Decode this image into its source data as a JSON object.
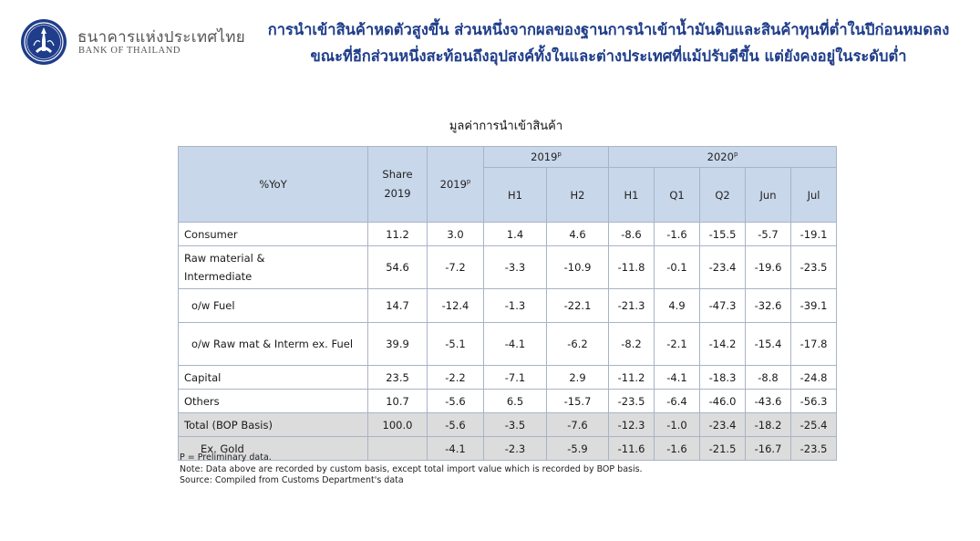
{
  "brand": {
    "name_th": "ธนาคารแห่งประเทศไทย",
    "name_en": "BANK OF THAILAND",
    "logo_color": "#1f3d8a"
  },
  "headline": {
    "line1": "การนำเข้าสินค้าหดตัวสูงขึ้น ส่วนหนึ่งจากผลของฐานการนำเข้าน้ำมันดิบและสินค้าทุนที่ต่ำในปีก่อนหมดลง",
    "line2": "ขณะที่อีกส่วนหนึ่งสะท้อนถึงอุปสงค์ทั้งในและต่างประเทศที่แม้ปรับดีขึ้น แต่ยังคงอยู่ในระดับต่ำ"
  },
  "table": {
    "title": "มูลค่าการนำเข้าสินค้า",
    "header": {
      "metric": "%YoY",
      "share_line1": "Share",
      "share_line2": "2019",
      "y2019": "2019",
      "y2019_sup": "p",
      "group2019": "2019",
      "group2019_sup": "p",
      "group2020": "2020",
      "group2020_sup": "p",
      "h1_2019": "H1",
      "h2_2019": "H2",
      "h1_2020": "H1",
      "q1": "Q1",
      "q2": "Q2",
      "jun": "Jun",
      "jul": "Jul"
    },
    "rows": [
      {
        "label": "Consumer",
        "cells": [
          "11.2",
          "3.0",
          "1.4",
          "4.6",
          "-8.6",
          "-1.6",
          "-15.5",
          "-5.7",
          "-19.1"
        ]
      },
      {
        "label": "Raw material &",
        "label2": "Intermediate",
        "cells": [
          "54.6",
          "-7.2",
          "-3.3",
          "-10.9",
          "-11.8",
          "-0.1",
          "-23.4",
          "-19.6",
          "-23.5"
        ]
      },
      {
        "label": "o/w Fuel",
        "cells": [
          "14.7",
          "-12.4",
          "-1.3",
          "-22.1",
          "-21.3",
          "4.9",
          "-47.3",
          "-32.6",
          "-39.1"
        ]
      },
      {
        "label": "o/w Raw mat & Interm ex. Fuel",
        "cells": [
          "39.9",
          "-5.1",
          "-4.1",
          "-6.2",
          "-8.2",
          "-2.1",
          "-14.2",
          "-15.4",
          "-17.8"
        ]
      },
      {
        "label": "Capital",
        "cells": [
          "23.5",
          "-2.2",
          "-7.1",
          "2.9",
          "-11.2",
          "-4.1",
          "-18.3",
          "-8.8",
          "-24.8"
        ]
      },
      {
        "label": "Others",
        "cells": [
          "10.7",
          "-5.6",
          "6.5",
          "-15.7",
          "-23.5",
          "-6.4",
          "-46.0",
          "-43.6",
          "-56.3"
        ]
      },
      {
        "label": "Total (BOP Basis)",
        "cells": [
          "100.0",
          "-5.6",
          "-3.5",
          "-7.6",
          "-12.3",
          "-1.0",
          "-23.4",
          "-18.2",
          "-25.4"
        ]
      },
      {
        "label": "Ex. Gold",
        "cells": [
          "",
          "-4.1",
          "-2.3",
          "-5.9",
          "-11.6",
          "-1.6",
          "-21.5",
          "-16.7",
          "-23.5"
        ]
      }
    ]
  },
  "notes": {
    "preliminary": "P = Preliminary data.",
    "note": "Note: Data above are recorded by custom basis, except total import value which is recorded by BOP basis.",
    "source": "Source: Compiled from Customs Department's data"
  }
}
